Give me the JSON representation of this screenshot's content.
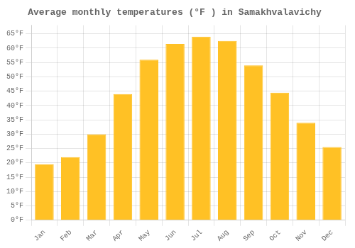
{
  "chart_data": {
    "type": "bar",
    "title": "Average monthly temperatures (°F ) in Samakhvalavichy",
    "categories": [
      "Jan",
      "Feb",
      "Mar",
      "Apr",
      "May",
      "Jun",
      "Jul",
      "Aug",
      "Sep",
      "Oct",
      "Nov",
      "Dec"
    ],
    "values": [
      19.5,
      22.0,
      30.0,
      44.0,
      56.0,
      61.5,
      64.0,
      62.5,
      54.0,
      44.5,
      34.0,
      25.5
    ],
    "color": "#FFC125",
    "ylim": [
      0,
      68
    ],
    "yticks": [
      {
        "value": 0,
        "label": "0°F"
      },
      {
        "value": 5,
        "label": "5°F"
      },
      {
        "value": 10,
        "label": "10°F"
      },
      {
        "value": 15,
        "label": "15°F"
      },
      {
        "value": 20,
        "label": "20°F"
      },
      {
        "value": 25,
        "label": "25°F"
      },
      {
        "value": 30,
        "label": "30°F"
      },
      {
        "value": 35,
        "label": "35°F"
      },
      {
        "value": 40,
        "label": "40°F"
      },
      {
        "value": 45,
        "label": "45°F"
      },
      {
        "value": 50,
        "label": "50°F"
      },
      {
        "value": 55,
        "label": "55°F"
      },
      {
        "value": 60,
        "label": "60°F"
      },
      {
        "value": 65,
        "label": "65°F"
      }
    ],
    "grid": true
  }
}
